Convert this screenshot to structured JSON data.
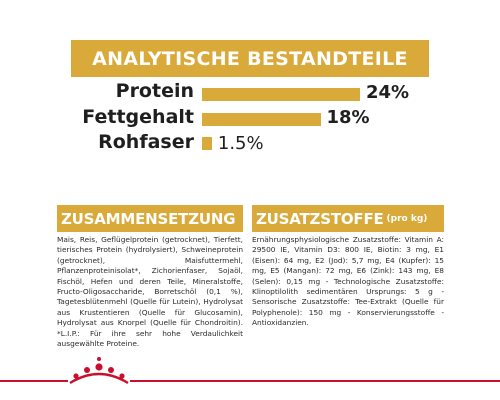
{
  "header": {
    "title": "ANALYTISCHE BESTANDTEILE"
  },
  "nutrients": [
    {
      "label": "Protein",
      "value": "24%",
      "percent": 24
    },
    {
      "label": "Fettgehalt",
      "value": "18%",
      "percent": 18
    },
    {
      "label": "Rohfaser",
      "value": "1.5%",
      "percent": 1.5
    }
  ],
  "composition": {
    "title": "ZUSAMMENSETZUNG",
    "text": "Mais, Reis, Geflügelprotein (getrocknet), Tierfett, tierisches Protein (hydrolysiert), Schweineprotein (getrocknet), Maisfuttermehl, Pflanzenproteinisolat*, Zichorienfaser, Sojaöl, Fischöl, Hefen und deren Teile, Mineralstoffe, Fructo-Oligosaccharide, Borretschöl (0,1 %), Tagetesblütenmehl (Quelle für Lutein), Hydrolysat aus Krustentieren (Quelle für Glucosamin), Hydrolysat aus Knorpel (Quelle für Chondroitin). *L.I.P.: Für ihre sehr hohe Verdaulichkeit ausgewählte Proteine."
  },
  "additives": {
    "title": "ZUSATZSTOFFE",
    "suffix": "(pro kg)",
    "text": "Ernährungsphysiologische Zusatzstoffe: Vitamin A: 29500 IE, Vitamin D3: 800 IE, Biotin: 3 mg, E1 (Eisen): 64 mg, E2 (Jod): 5,7 mg, E4 (Kupfer): 15 mg, E5 (Mangan): 72 mg, E6 (Zink): 143 mg, E8 (Selen): 0,15 mg - Technologische Zusatzstoffe: Klinoptilolith sedimentären Ursprungs: 5 g - Sensorische Zusatzstoffe: Tee-Extrakt (Quelle für Polyphenole): 150 mg - Konservierungsstoffe - Antioxidanzien."
  },
  "colors": {
    "accent": "#d9a93a",
    "brand_red": "#c8102e"
  },
  "logo": {
    "name": "royal-canin-crown-logo"
  }
}
